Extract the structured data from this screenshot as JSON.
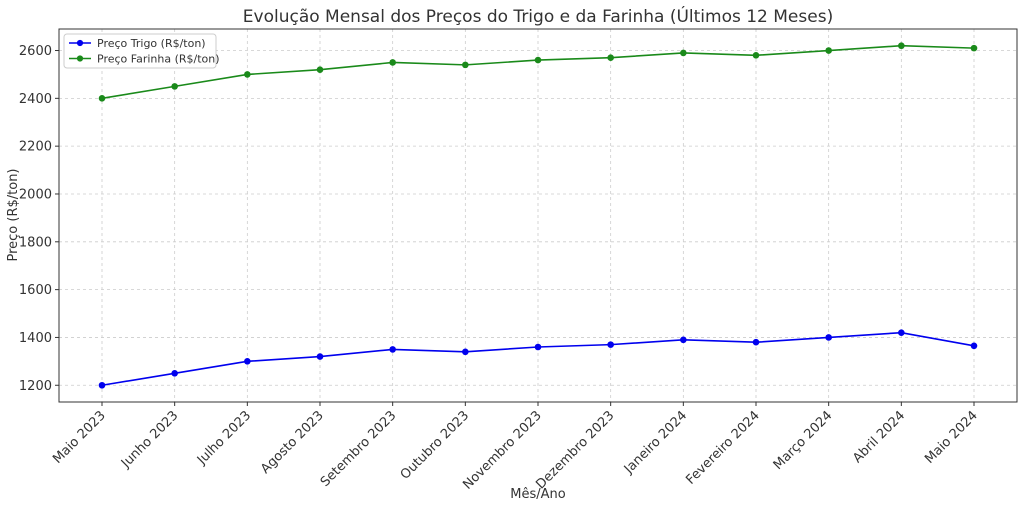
{
  "chart_data": {
    "type": "line",
    "title": "Evolução Mensal dos Preços do Trigo e da Farinha (Últimos 12 Meses)",
    "xlabel": "Mês/Ano",
    "ylabel": "Preço (R$/ton)",
    "categories": [
      "Maio 2023",
      "Junho 2023",
      "Julho 2023",
      "Agosto 2023",
      "Setembro 2023",
      "Outubro 2023",
      "Novembro 2023",
      "Dezembro 2023",
      "Janeiro 2024",
      "Fevereiro 2024",
      "Março 2024",
      "Abril 2024",
      "Maio 2024"
    ],
    "ylim": [
      1130,
      2690
    ],
    "yticks": [
      1200,
      1400,
      1600,
      1800,
      2000,
      2200,
      2400,
      2600
    ],
    "grid": true,
    "legend_position": "top-left",
    "series": [
      {
        "name": "Preço Trigo (R$/ton)",
        "color": "#0000ee",
        "values": [
          1200,
          1250,
          1300,
          1320,
          1350,
          1340,
          1360,
          1370,
          1390,
          1380,
          1400,
          1420,
          1365
        ]
      },
      {
        "name": "Preço Farinha (R$/ton)",
        "color": "#1a8a1a",
        "values": [
          2400,
          2450,
          2500,
          2520,
          2550,
          2540,
          2560,
          2570,
          2590,
          2580,
          2600,
          2620,
          2610
        ]
      }
    ]
  }
}
